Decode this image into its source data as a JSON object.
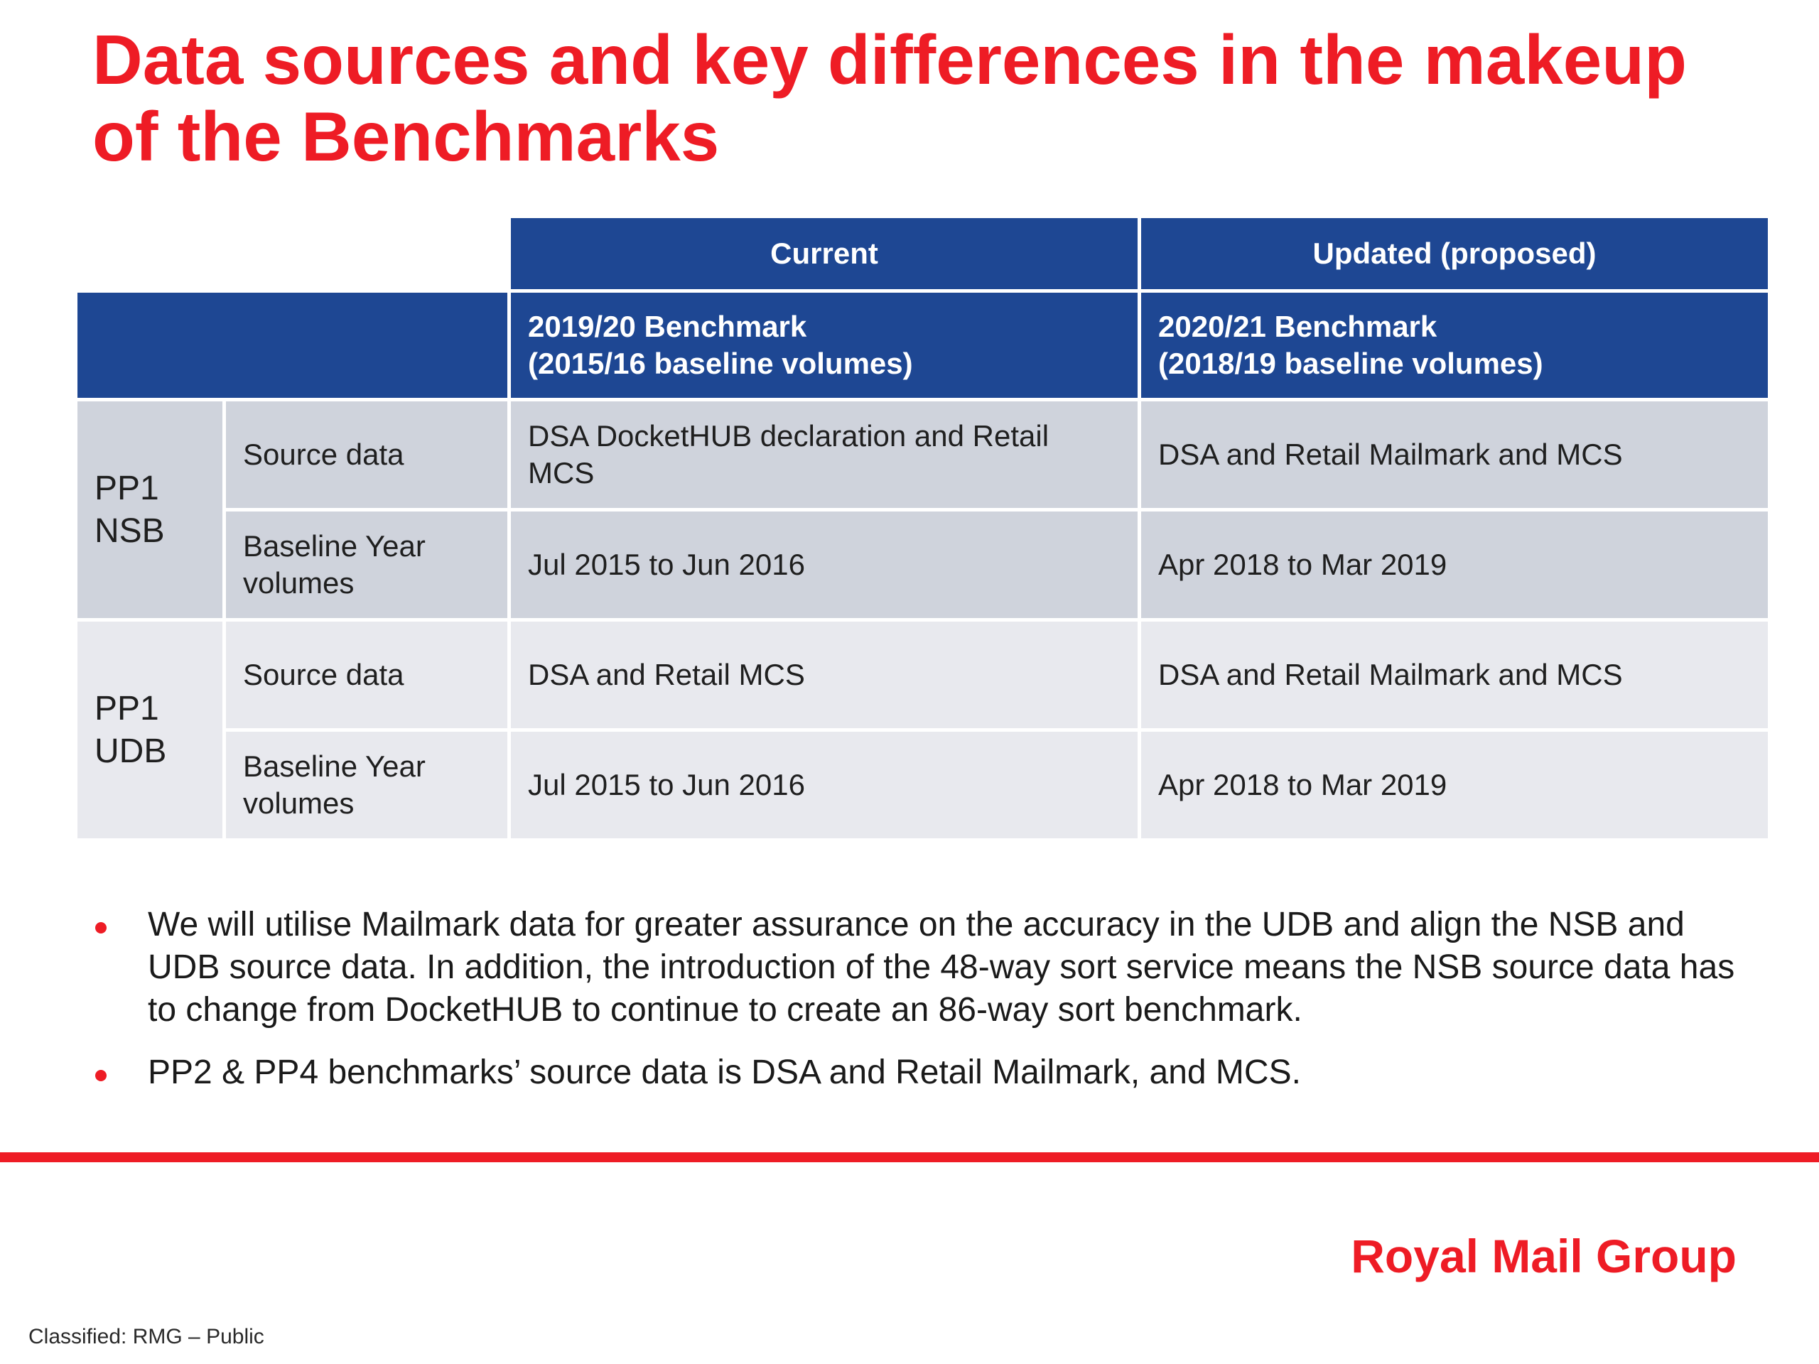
{
  "title": {
    "line1": "Data sources and key differences in the makeup",
    "line2": "of the Benchmarks"
  },
  "table": {
    "headers": {
      "current": "Current",
      "updated": "Updated (proposed)"
    },
    "subheaders": {
      "current_line1": "2019/20 Benchmark",
      "current_line2": "(2015/16 baseline volumes)",
      "updated_line1": "2020/21 Benchmark",
      "updated_line2": "(2018/19 baseline volumes)"
    },
    "groups": [
      {
        "label_line1": "PP1",
        "label_line2": "NSB",
        "rows": [
          {
            "label_line1": "Source data",
            "label_line2": "",
            "current_line1": "DSA DocketHUB declaration and Retail",
            "current_line2": "MCS",
            "updated": "DSA and Retail Mailmark and MCS"
          },
          {
            "label_line1": "Baseline Year",
            "label_line2": "volumes",
            "current_line1": "Jul 2015 to Jun 2016",
            "current_line2": "",
            "updated": "Apr 2018 to Mar 2019"
          }
        ]
      },
      {
        "label_line1": "PP1",
        "label_line2": "UDB",
        "rows": [
          {
            "label_line1": "Source data",
            "label_line2": "",
            "current_line1": "DSA and Retail MCS",
            "current_line2": "",
            "updated": "DSA and Retail Mailmark and MCS"
          },
          {
            "label_line1": "Baseline Year",
            "label_line2": "volumes",
            "current_line1": "Jul 2015 to Jun 2016",
            "current_line2": "",
            "updated": "Apr 2018 to Mar 2019"
          }
        ]
      }
    ]
  },
  "bullets": [
    "We will utilise Mailmark data for greater assurance on the accuracy in the UDB and align the NSB and UDB source data. In addition, the introduction of the 48-way sort service means the NSB source data has to change from DocketHUB to continue to create an 86-way sort benchmark.",
    "PP2 & PP4 benchmarks’ source data is DSA and Retail Mailmark, and MCS."
  ],
  "logo": "Royal Mail Group",
  "classification": "Classified: RMG – Public",
  "colors": {
    "accent_red": "#ee1c25",
    "header_blue": "#1e4793",
    "row_dark": "#cfd3dc",
    "row_light": "#e8e9ee"
  }
}
